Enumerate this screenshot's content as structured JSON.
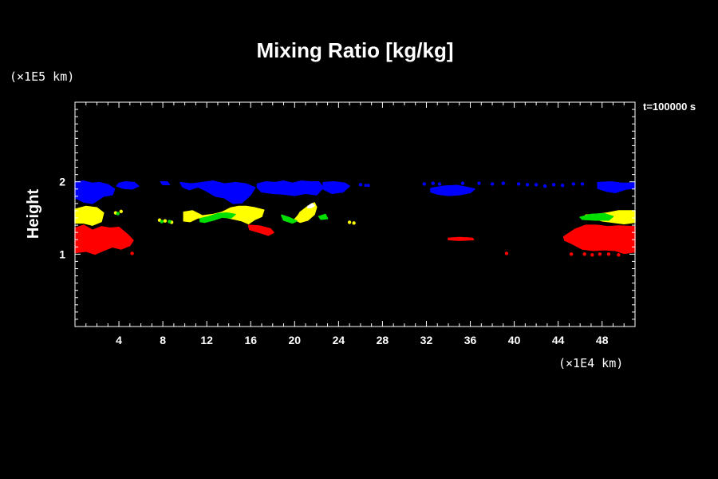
{
  "chart_data": {
    "type": "heatmap",
    "title": "Mixing Ratio [kg/kg]",
    "ylabel": "Height",
    "y_unit_label": "(×1E5 km)",
    "x_unit_label": "(×1E4 km)",
    "time_label": "t=100000 s",
    "xlim": [
      0,
      51
    ],
    "ylim": [
      0,
      3.1
    ],
    "x_ticks": [
      4,
      8,
      12,
      16,
      20,
      24,
      28,
      32,
      36,
      40,
      44,
      48
    ],
    "y_ticks": [
      1,
      2
    ],
    "layers": [
      {
        "color": "#ff0000",
        "regions": [
          {
            "x": [
              0.0,
              0.8,
              1.6,
              2.4,
              3.2,
              4.0,
              4.8,
              5.3,
              5.0,
              4.2,
              3.4,
              2.6,
              1.8,
              1.0,
              0.0
            ],
            "y": [
              1.36,
              1.4,
              1.33,
              1.38,
              1.36,
              1.37,
              1.27,
              1.19,
              1.12,
              1.07,
              1.1,
              1.05,
              1.0,
              1.04,
              1.02
            ]
          },
          {
            "x": [
              15.8,
              16.8,
              17.8,
              18.1,
              17.6,
              16.8,
              15.9
            ],
            "y": [
              1.4,
              1.39,
              1.35,
              1.3,
              1.26,
              1.3,
              1.34
            ]
          },
          {
            "x": [
              34.0,
              35.0,
              36.2,
              36.3,
              35.0,
              34.0
            ],
            "y": [
              1.22,
              1.23,
              1.22,
              1.2,
              1.19,
              1.2
            ]
          },
          {
            "x": [
              44.5,
              45.5,
              46.5,
              47.5,
              48.5,
              49.5,
              51.0,
              51.0,
              50.0,
              49.2,
              48.2,
              47.2,
              46.2,
              45.2,
              44.6
            ],
            "y": [
              1.24,
              1.34,
              1.4,
              1.4,
              1.38,
              1.39,
              1.38,
              1.03,
              1.01,
              1.05,
              1.06,
              1.05,
              1.07,
              1.15,
              1.19
            ]
          }
        ]
      },
      {
        "color": "#ffff00",
        "regions": [
          {
            "x": [
              0.0,
              1.0,
              2.0,
              2.6,
              2.4,
              1.6,
              0.8,
              0.0
            ],
            "y": [
              1.62,
              1.66,
              1.64,
              1.57,
              1.45,
              1.4,
              1.43,
              1.43
            ]
          },
          {
            "x": [
              9.9,
              10.7,
              11.6,
              12.6,
              13.4,
              14.2,
              14.9,
              15.6,
              16.4,
              17.2,
              17.0,
              16.4,
              15.8,
              15.2,
              14.6,
              14.0,
              13.4,
              12.8,
              12.0,
              11.2,
              10.5,
              9.9
            ],
            "y": [
              1.58,
              1.6,
              1.53,
              1.55,
              1.58,
              1.64,
              1.66,
              1.66,
              1.64,
              1.61,
              1.52,
              1.48,
              1.42,
              1.46,
              1.48,
              1.5,
              1.52,
              1.52,
              1.51,
              1.5,
              1.45,
              1.46
            ]
          },
          {
            "x": [
              20.5,
              21.2,
              21.8,
              22.0,
              21.8,
              21.2,
              20.5,
              20.0,
              20.3
            ],
            "y": [
              1.58,
              1.66,
              1.71,
              1.65,
              1.55,
              1.47,
              1.44,
              1.48,
              1.53
            ]
          },
          {
            "x": [
              46.5,
              47.5,
              48.5,
              49.5,
              51.0,
              51.0,
              50.0,
              49.0,
              48.0,
              47.0
            ],
            "y": [
              1.54,
              1.55,
              1.57,
              1.6,
              1.6,
              1.44,
              1.42,
              1.44,
              1.46,
              1.5
            ]
          }
        ]
      },
      {
        "color": "#00e000",
        "regions": [
          {
            "x": [
              11.4,
              12.2,
              13.0,
              13.8,
              14.6,
              14.2,
              13.4,
              12.6,
              11.8,
              11.4
            ],
            "y": [
              1.49,
              1.52,
              1.56,
              1.57,
              1.55,
              1.5,
              1.51,
              1.47,
              1.44,
              1.45
            ]
          },
          {
            "x": [
              18.8,
              19.6,
              20.2,
              19.8,
              19.0
            ],
            "y": [
              1.54,
              1.5,
              1.46,
              1.43,
              1.47
            ]
          },
          {
            "x": [
              22.2,
              22.8,
              23.0,
              22.4
            ],
            "y": [
              1.52,
              1.55,
              1.49,
              1.48
            ]
          },
          {
            "x": [
              46.0,
              47.0,
              48.2,
              49.0,
              48.6,
              47.4,
              46.2
            ],
            "y": [
              1.51,
              1.55,
              1.56,
              1.52,
              1.47,
              1.47,
              1.48
            ]
          }
        ]
      },
      {
        "color": "#0000ff",
        "regions": [
          {
            "x": [
              0.0,
              0.8,
              1.6,
              2.2,
              3.0,
              3.6,
              3.4,
              2.6,
              1.6,
              0.8,
              0.0
            ],
            "y": [
              2.0,
              2.01,
              1.98,
              1.99,
              1.96,
              1.9,
              1.82,
              1.8,
              1.7,
              1.72,
              1.78
            ]
          },
          {
            "x": [
              4.0,
              4.6,
              5.4,
              5.8,
              5.2,
              4.4,
              3.8
            ],
            "y": [
              1.98,
              2.0,
              1.99,
              1.94,
              1.9,
              1.91,
              1.94
            ]
          },
          {
            "x": [
              7.8,
              8.4,
              8.6,
              8.0
            ],
            "y": [
              2.0,
              2.0,
              1.96,
              1.96
            ]
          },
          {
            "x": [
              9.6,
              10.6,
              11.6,
              12.6,
              13.6,
              14.6,
              15.6,
              16.4,
              16.0,
              15.2,
              14.4,
              13.6,
              12.8,
              12.0,
              11.2,
              10.4,
              9.8
            ],
            "y": [
              1.99,
              1.97,
              1.99,
              2.01,
              1.97,
              1.99,
              1.97,
              1.92,
              1.82,
              1.71,
              1.7,
              1.78,
              1.8,
              1.87,
              1.93,
              1.89,
              1.93
            ]
          },
          {
            "x": [
              16.6,
              17.4,
              18.2,
              19.0,
              19.8,
              20.6,
              21.4,
              22.2,
              22.6,
              22.0,
              21.0,
              20.0,
              19.0,
              18.0,
              17.0,
              16.6
            ],
            "y": [
              1.97,
              2.0,
              1.99,
              2.01,
              1.98,
              2.01,
              2.0,
              2.0,
              1.92,
              1.82,
              1.84,
              1.81,
              1.83,
              1.84,
              1.86,
              1.92
            ]
          },
          {
            "x": [
              22.6,
              23.6,
              24.6,
              25.0,
              24.4,
              23.4,
              22.6
            ],
            "y": [
              1.99,
              2.0,
              1.98,
              1.94,
              1.86,
              1.84,
              1.9
            ]
          },
          {
            "x": [
              26.4,
              26.8,
              26.8,
              26.4
            ],
            "y": [
              1.96,
              1.96,
              1.94,
              1.94
            ]
          },
          {
            "x": [
              32.4,
              33.6,
              34.8,
              35.8,
              36.4,
              36.0,
              35.0,
              34.0,
              33.0,
              32.4
            ],
            "y": [
              1.91,
              1.94,
              1.95,
              1.92,
              1.9,
              1.85,
              1.82,
              1.81,
              1.83,
              1.86
            ]
          },
          {
            "x": [
              47.6,
              48.8,
              49.8,
              50.4,
              51.0,
              51.0,
              50.2,
              49.2,
              48.4,
              47.6
            ],
            "y": [
              1.99,
              2.0,
              1.98,
              1.98,
              1.99,
              1.91,
              1.9,
              1.85,
              1.87,
              1.91
            ]
          }
        ]
      },
      {
        "color": "#ffffff",
        "regions": [
          {
            "x": [
              21.2,
              21.6,
              21.8,
              21.5,
              21.2
            ],
            "y": [
              1.66,
              1.7,
              1.67,
              1.64,
              1.64
            ]
          }
        ]
      }
    ],
    "dots": [
      {
        "color": "#ff0000",
        "x": [
          1.5,
          2.6,
          5.2,
          39.3,
          45.2,
          46.4,
          47.1,
          47.8,
          48.6,
          49.5
        ],
        "y": [
          1.3,
          1.2,
          1.01,
          1.01,
          1.0,
          1.0,
          0.99,
          1.0,
          1.0,
          0.99
        ]
      },
      {
        "color": "#ffff00",
        "x": [
          3.7,
          4.2,
          7.7,
          8.2,
          8.8,
          25.0,
          25.4
        ],
        "y": [
          1.57,
          1.59,
          1.47,
          1.46,
          1.44,
          1.44,
          1.43
        ]
      },
      {
        "color": "#00e000",
        "x": [
          3.9,
          7.9,
          8.6
        ],
        "y": [
          1.56,
          1.45,
          1.45
        ]
      },
      {
        "color": "#0000ff",
        "x": [
          26.0,
          31.8,
          32.6,
          33.2,
          35.3,
          36.8,
          38.0,
          39.0,
          40.4,
          41.2,
          42.0,
          42.8,
          43.6,
          44.4,
          45.4,
          46.2
        ],
        "y": [
          1.96,
          1.97,
          1.98,
          1.97,
          1.98,
          1.98,
          1.97,
          1.98,
          1.97,
          1.96,
          1.96,
          1.94,
          1.96,
          1.95,
          1.97,
          1.97
        ]
      }
    ]
  }
}
